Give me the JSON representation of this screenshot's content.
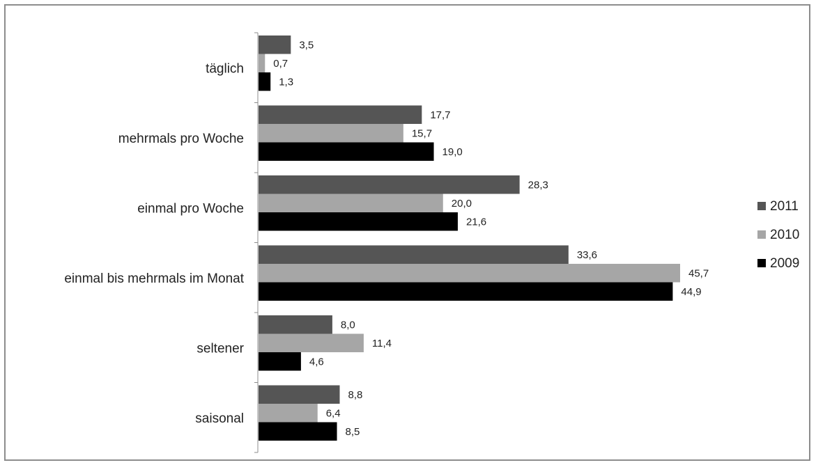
{
  "chart_data": {
    "type": "bar",
    "orientation": "horizontal",
    "categories": [
      "täglich",
      "mehrmals pro Woche",
      "einmal pro Woche",
      "einmal bis mehrmals im Monat",
      "seltener",
      "saisonal"
    ],
    "series": [
      {
        "name": "2011",
        "color": "#555555",
        "values": [
          3.5,
          17.7,
          28.3,
          33.6,
          8.0,
          8.8
        ],
        "labels": [
          "3,5",
          "17,7",
          "28,3",
          "33,6",
          "8,0",
          "8,8"
        ]
      },
      {
        "name": "2010",
        "color": "#a6a6a6",
        "values": [
          0.7,
          15.7,
          20.0,
          45.7,
          11.4,
          6.4
        ],
        "labels": [
          "0,7",
          "15,7",
          "20,0",
          "45,7",
          "11,4",
          "6,4"
        ]
      },
      {
        "name": "2009",
        "color": "#000000",
        "values": [
          1.3,
          19.0,
          21.6,
          44.9,
          4.6,
          8.5
        ],
        "labels": [
          "1,3",
          "19,0",
          "21,6",
          "44,9",
          "4,6",
          "8,5"
        ]
      }
    ],
    "title": "",
    "xlabel": "",
    "ylabel": "",
    "xlim": [
      0,
      46
    ],
    "grid": false,
    "legend_position": "right"
  }
}
